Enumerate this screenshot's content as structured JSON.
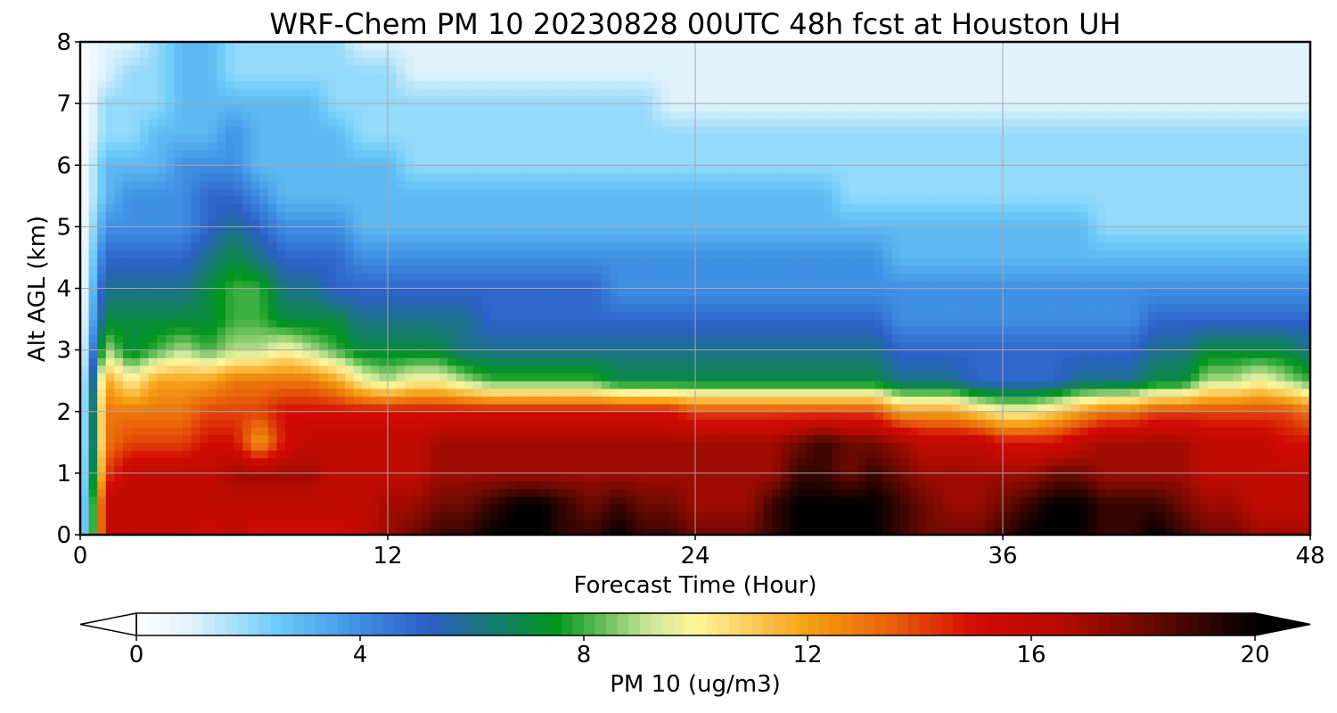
{
  "chart_data": {
    "type": "heatmap",
    "title": "WRF-Chem PM 10  20230828 00UTC 48h fcst at Houston UH",
    "xlabel": "Forecast Time (Hour)",
    "ylabel": "Alt AGL (km)",
    "xlim": [
      0,
      48
    ],
    "ylim": [
      0,
      8
    ],
    "x_ticks": [
      0,
      12,
      24,
      36,
      48
    ],
    "y_ticks": [
      0,
      1,
      2,
      3,
      4,
      5,
      6,
      7,
      8
    ],
    "grid": true,
    "colorbar": {
      "label": "PM 10  (ug/m3)",
      "min": 0,
      "max": 20,
      "ticks": [
        0,
        4,
        8,
        12,
        16,
        20
      ],
      "extend": "both",
      "orientation": "horizontal",
      "colormap_stops": [
        {
          "value": 0,
          "color": "#ffffff"
        },
        {
          "value": 1,
          "color": "#e0f3fc"
        },
        {
          "value": 2.5,
          "color": "#6ecdfa"
        },
        {
          "value": 4,
          "color": "#3f8fe3"
        },
        {
          "value": 5.2,
          "color": "#2c5fc6"
        },
        {
          "value": 7.5,
          "color": "#00961c"
        },
        {
          "value": 9.2,
          "color": "#cfe89a"
        },
        {
          "value": 10,
          "color": "#fff59a"
        },
        {
          "value": 11,
          "color": "#fbca5b"
        },
        {
          "value": 12,
          "color": "#f5a215"
        },
        {
          "value": 13.5,
          "color": "#e8600a"
        },
        {
          "value": 15,
          "color": "#d20a04"
        },
        {
          "value": 16.5,
          "color": "#b60b00"
        },
        {
          "value": 18,
          "color": "#6e0a00"
        },
        {
          "value": 20,
          "color": "#000000"
        }
      ]
    },
    "hours": [
      0,
      1,
      2,
      3,
      4,
      5,
      6,
      7,
      8,
      9,
      10,
      11,
      12,
      13,
      14,
      15,
      16,
      17,
      18,
      19,
      20,
      21,
      22,
      23,
      24,
      25,
      26,
      27,
      28,
      29,
      30,
      31,
      32,
      33,
      34,
      35,
      36,
      37,
      38,
      39,
      40,
      41,
      42,
      43,
      44,
      45,
      46,
      47,
      48
    ],
    "altitudes_km": [
      0,
      0.5,
      1,
      1.5,
      2,
      2.5,
      3,
      3.5,
      4,
      4.5,
      5,
      5.5,
      6,
      6.5,
      7,
      7.5,
      8
    ],
    "boundary_layer_top_km": [
      0,
      3.6,
      2.4,
      2.8,
      3.1,
      2.8,
      3.0,
      3.1,
      3.3,
      3.1,
      2.9,
      2.6,
      2.5,
      2.6,
      2.7,
      2.6,
      2.5,
      2.5,
      2.5,
      2.4,
      2.4,
      2.4,
      2.3,
      2.3,
      2.3,
      2.3,
      2.3,
      2.3,
      2.3,
      2.3,
      2.3,
      2.3,
      2.1,
      2.1,
      2.0,
      1.9,
      1.8,
      1.7,
      1.8,
      2.1,
      2.1,
      2.2,
      2.3,
      2.4,
      2.5,
      2.5,
      2.6,
      2.5,
      2.2
    ],
    "note": "Values estimated from contour colours; each series gives PM10 (ug/m3) at one altitude level across forecast hours 0-48.",
    "series": [
      {
        "name": "0 km",
        "values": [
          0,
          16,
          16,
          16,
          16,
          15,
          16,
          15,
          15,
          15,
          15,
          16,
          17,
          18,
          19,
          19,
          20,
          20,
          20,
          19,
          19,
          20,
          19,
          19,
          18,
          18,
          18,
          19,
          20,
          20,
          20,
          20,
          19,
          18,
          18,
          18,
          19,
          20,
          20,
          20,
          19,
          19,
          20,
          19,
          18,
          18,
          17,
          17,
          17
        ]
      },
      {
        "name": "0.5 km",
        "values": [
          0,
          16,
          16,
          16,
          16,
          16,
          16,
          16,
          16,
          16,
          16,
          16,
          17,
          17,
          18,
          18,
          19,
          20,
          20,
          19,
          18,
          19,
          18,
          18,
          17,
          17,
          17,
          19,
          20,
          20,
          20,
          20,
          19,
          18,
          17,
          17,
          18,
          19,
          20,
          20,
          19,
          19,
          19,
          18,
          17,
          17,
          16,
          16,
          16
        ]
      },
      {
        "name": "1 km",
        "values": [
          0,
          14,
          16,
          16,
          16,
          16,
          17,
          17,
          17,
          17,
          16,
          16,
          16,
          16,
          17,
          17,
          17,
          17,
          17,
          17,
          17,
          17,
          17,
          17,
          17,
          17,
          17,
          17,
          19,
          19,
          18,
          19,
          18,
          17,
          17,
          17,
          17,
          17,
          18,
          18,
          17,
          17,
          17,
          17,
          16,
          16,
          16,
          16,
          16
        ]
      },
      {
        "name": "1.5 km",
        "values": [
          0,
          13,
          14,
          14,
          14,
          15,
          15,
          12,
          15,
          16,
          16,
          16,
          16,
          16,
          17,
          17,
          17,
          17,
          17,
          17,
          17,
          17,
          17,
          17,
          17,
          17,
          17,
          17,
          18,
          19,
          18,
          18,
          17,
          16,
          16,
          16,
          15,
          15,
          15,
          16,
          17,
          17,
          17,
          17,
          16,
          16,
          16,
          15,
          15
        ]
      },
      {
        "name": "2 km",
        "values": [
          0,
          13,
          13,
          13,
          13,
          14,
          14,
          14,
          15,
          15,
          15,
          15,
          15,
          15,
          15,
          15,
          15,
          15,
          15,
          15,
          15,
          15,
          15,
          15,
          14,
          14,
          14,
          14,
          14,
          14,
          14,
          14,
          12,
          12,
          12,
          11,
          10,
          10,
          11,
          12,
          13,
          13,
          14,
          14,
          14,
          14,
          14,
          14,
          13
        ]
      },
      {
        "name": "2.5 km",
        "values": [
          0,
          12,
          10,
          12,
          12,
          12,
          13,
          13,
          13,
          13,
          12,
          10,
          9,
          10,
          10,
          9,
          8,
          8,
          8,
          8,
          8,
          7,
          7,
          7,
          7,
          7,
          7,
          7,
          7,
          7,
          7,
          7,
          6,
          6,
          6,
          5,
          5,
          5,
          5,
          6,
          6,
          6,
          7,
          7,
          9,
          9,
          10,
          9,
          8
        ]
      },
      {
        "name": "3 km",
        "values": [
          0,
          9,
          7,
          8,
          9,
          8,
          9,
          9,
          10,
          9,
          8,
          7,
          7,
          7,
          7,
          6,
          6,
          6,
          6,
          6,
          6,
          6,
          6,
          6,
          6,
          6,
          6,
          6,
          6,
          6,
          6,
          6,
          5,
          5,
          5,
          5,
          5,
          5,
          5,
          5,
          5,
          5,
          6,
          6,
          7,
          7,
          7,
          7,
          6
        ]
      },
      {
        "name": "3.5 km",
        "values": [
          0,
          7,
          7,
          7,
          7,
          7,
          8,
          8,
          7,
          7,
          7,
          6,
          6,
          6,
          6,
          6,
          5,
          5,
          5,
          5,
          5,
          5,
          5,
          5,
          5,
          5,
          5,
          5,
          5,
          5,
          5,
          5,
          4,
          4,
          4,
          4,
          4,
          4,
          4,
          4,
          4,
          4,
          5,
          5,
          5,
          5,
          5,
          5,
          5
        ]
      },
      {
        "name": "4 km",
        "values": [
          0,
          6,
          6,
          6,
          6,
          7,
          8,
          8,
          6,
          6,
          5,
          5,
          5,
          5,
          5,
          5,
          5,
          5,
          5,
          5,
          5,
          4,
          4,
          4,
          4,
          4,
          4,
          4,
          4,
          4,
          4,
          4,
          4,
          4,
          4,
          4,
          4,
          4,
          4,
          4,
          4,
          4,
          4,
          4,
          4,
          4,
          4,
          4,
          4
        ]
      },
      {
        "name": "4.5 km",
        "values": [
          0,
          5,
          5,
          5,
          5,
          6,
          7,
          6,
          5,
          5,
          5,
          4,
          4,
          4,
          4,
          4,
          4,
          4,
          4,
          4,
          4,
          4,
          4,
          4,
          4,
          4,
          4,
          4,
          4,
          4,
          4,
          4,
          3,
          3,
          3,
          3,
          3,
          3,
          3,
          3,
          3,
          3,
          3,
          3,
          3,
          3,
          3,
          3,
          3
        ]
      },
      {
        "name": "5 km",
        "values": [
          0,
          4,
          4,
          4,
          4,
          5,
          6,
          5,
          4,
          4,
          4,
          3,
          3,
          3,
          3,
          3,
          3,
          3,
          3,
          3,
          3,
          3,
          3,
          3,
          3,
          3,
          3,
          3,
          3,
          3,
          3,
          3,
          3,
          3,
          3,
          3,
          3,
          3,
          3,
          3,
          2,
          2,
          2,
          2,
          2,
          2,
          2,
          2,
          2
        ]
      },
      {
        "name": "5.5 km",
        "values": [
          0,
          3,
          4,
          4,
          4,
          5,
          5,
          4,
          3,
          3,
          3,
          3,
          3,
          3,
          3,
          3,
          3,
          3,
          3,
          3,
          3,
          3,
          3,
          3,
          3,
          3,
          3,
          3,
          3,
          3,
          2,
          2,
          2,
          2,
          2,
          2,
          2,
          2,
          2,
          2,
          2,
          2,
          2,
          2,
          2,
          2,
          2,
          2,
          2
        ]
      },
      {
        "name": "6 km",
        "values": [
          0,
          3,
          3,
          3,
          4,
          4,
          4,
          3,
          3,
          3,
          3,
          3,
          3,
          2,
          2,
          2,
          2,
          2,
          2,
          2,
          2,
          2,
          2,
          2,
          2,
          2,
          2,
          2,
          2,
          2,
          2,
          2,
          2,
          2,
          2,
          2,
          2,
          2,
          2,
          2,
          2,
          2,
          2,
          2,
          2,
          2,
          2,
          2,
          2
        ]
      },
      {
        "name": "6.5 km",
        "values": [
          0,
          2,
          2,
          3,
          3,
          3,
          4,
          3,
          3,
          3,
          3,
          2,
          2,
          2,
          2,
          2,
          2,
          2,
          2,
          2,
          2,
          2,
          2,
          2,
          2,
          2,
          2,
          2,
          2,
          2,
          2,
          2,
          2,
          2,
          2,
          2,
          2,
          2,
          2,
          2,
          2,
          2,
          2,
          2,
          2,
          2,
          2,
          2,
          2
        ]
      },
      {
        "name": "7 km",
        "values": [
          0,
          2,
          2,
          2,
          3,
          3,
          3,
          3,
          3,
          3,
          2,
          2,
          2,
          2,
          2,
          2,
          2,
          2,
          2,
          2,
          2,
          2,
          2,
          1,
          1,
          1,
          1,
          1,
          1,
          1,
          1,
          1,
          1,
          1,
          1,
          1,
          1,
          1,
          1,
          1,
          1,
          1,
          1,
          1,
          1,
          1,
          1,
          1,
          1
        ]
      },
      {
        "name": "7.5 km",
        "values": [
          0,
          1,
          2,
          2,
          3,
          3,
          2,
          2,
          2,
          2,
          2,
          2,
          2,
          1,
          1,
          1,
          1,
          1,
          1,
          1,
          1,
          1,
          1,
          1,
          1,
          1,
          1,
          1,
          1,
          1,
          1,
          1,
          1,
          1,
          1,
          1,
          1,
          1,
          1,
          1,
          1,
          1,
          1,
          1,
          1,
          1,
          1,
          1,
          1
        ]
      },
      {
        "name": "8 km",
        "values": [
          0,
          1,
          1,
          2,
          3,
          3,
          2,
          2,
          2,
          2,
          2,
          1,
          1,
          1,
          1,
          1,
          1,
          1,
          1,
          1,
          1,
          1,
          1,
          1,
          1,
          1,
          1,
          1,
          1,
          1,
          1,
          1,
          1,
          1,
          1,
          1,
          1,
          1,
          1,
          1,
          1,
          1,
          1,
          1,
          1,
          1,
          1,
          1,
          1
        ]
      }
    ]
  }
}
